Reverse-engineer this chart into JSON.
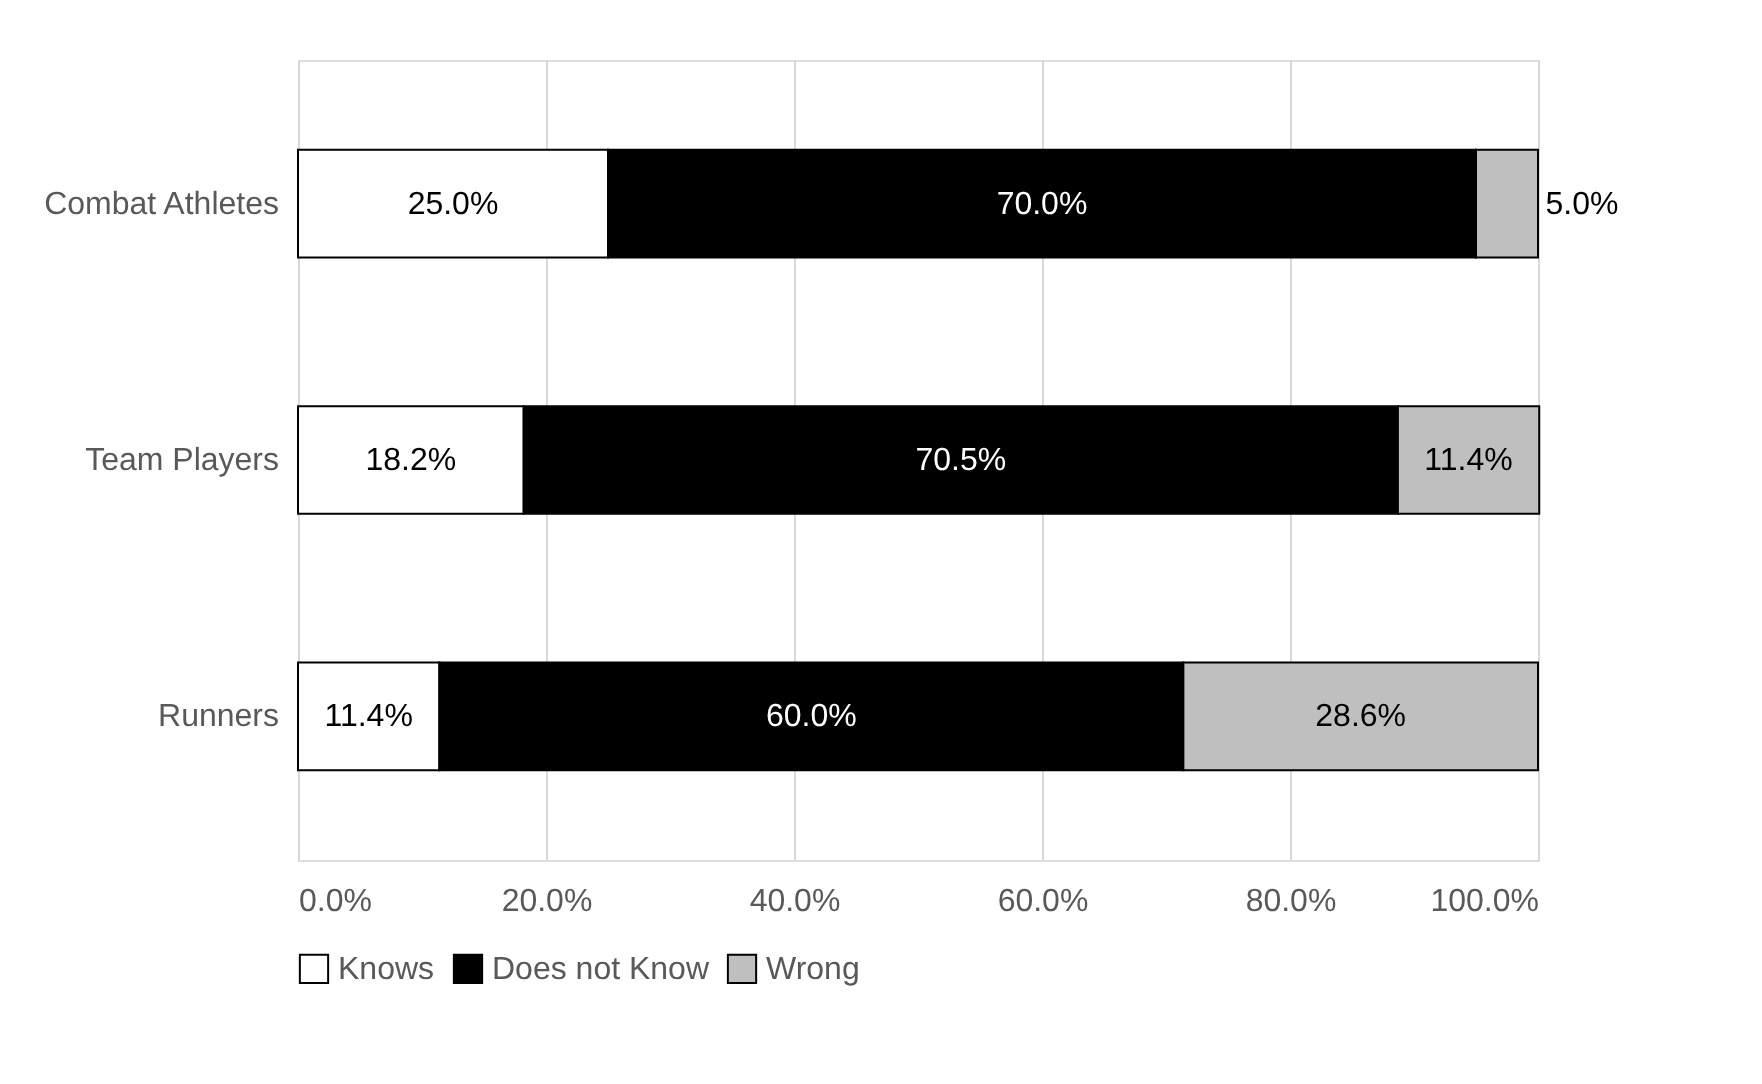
{
  "chart_data": {
    "type": "bar",
    "orientation": "horizontal",
    "stacked": true,
    "categories": [
      "Combat Athletes",
      "Team Players",
      "Runners"
    ],
    "series": [
      {
        "name": "Knows",
        "color": "#ffffff",
        "values": [
          25.0,
          18.2,
          11.4
        ],
        "value_labels": [
          "25.0%",
          "18.2%",
          "11.4%"
        ]
      },
      {
        "name": "Does not Know",
        "color": "#000000",
        "values": [
          70.0,
          70.5,
          60.0
        ],
        "value_labels": [
          "70.0%",
          "70.5%",
          "60.0%"
        ]
      },
      {
        "name": "Wrong",
        "color": "#bfbfbf",
        "values": [
          5.0,
          11.4,
          28.6
        ],
        "value_labels": [
          "5.0%",
          "11.4%",
          "28.6%"
        ]
      }
    ],
    "xlim": [
      0,
      100
    ],
    "xticks": [
      {
        "value": 0,
        "label": "0.0%"
      },
      {
        "value": 20,
        "label": "20.0%"
      },
      {
        "value": 40,
        "label": "40.0%"
      },
      {
        "value": 60,
        "label": "60.0%"
      },
      {
        "value": 80,
        "label": "80.0%"
      },
      {
        "value": 100,
        "label": "100.0%"
      }
    ],
    "grid": "x",
    "legend": "bottom"
  }
}
